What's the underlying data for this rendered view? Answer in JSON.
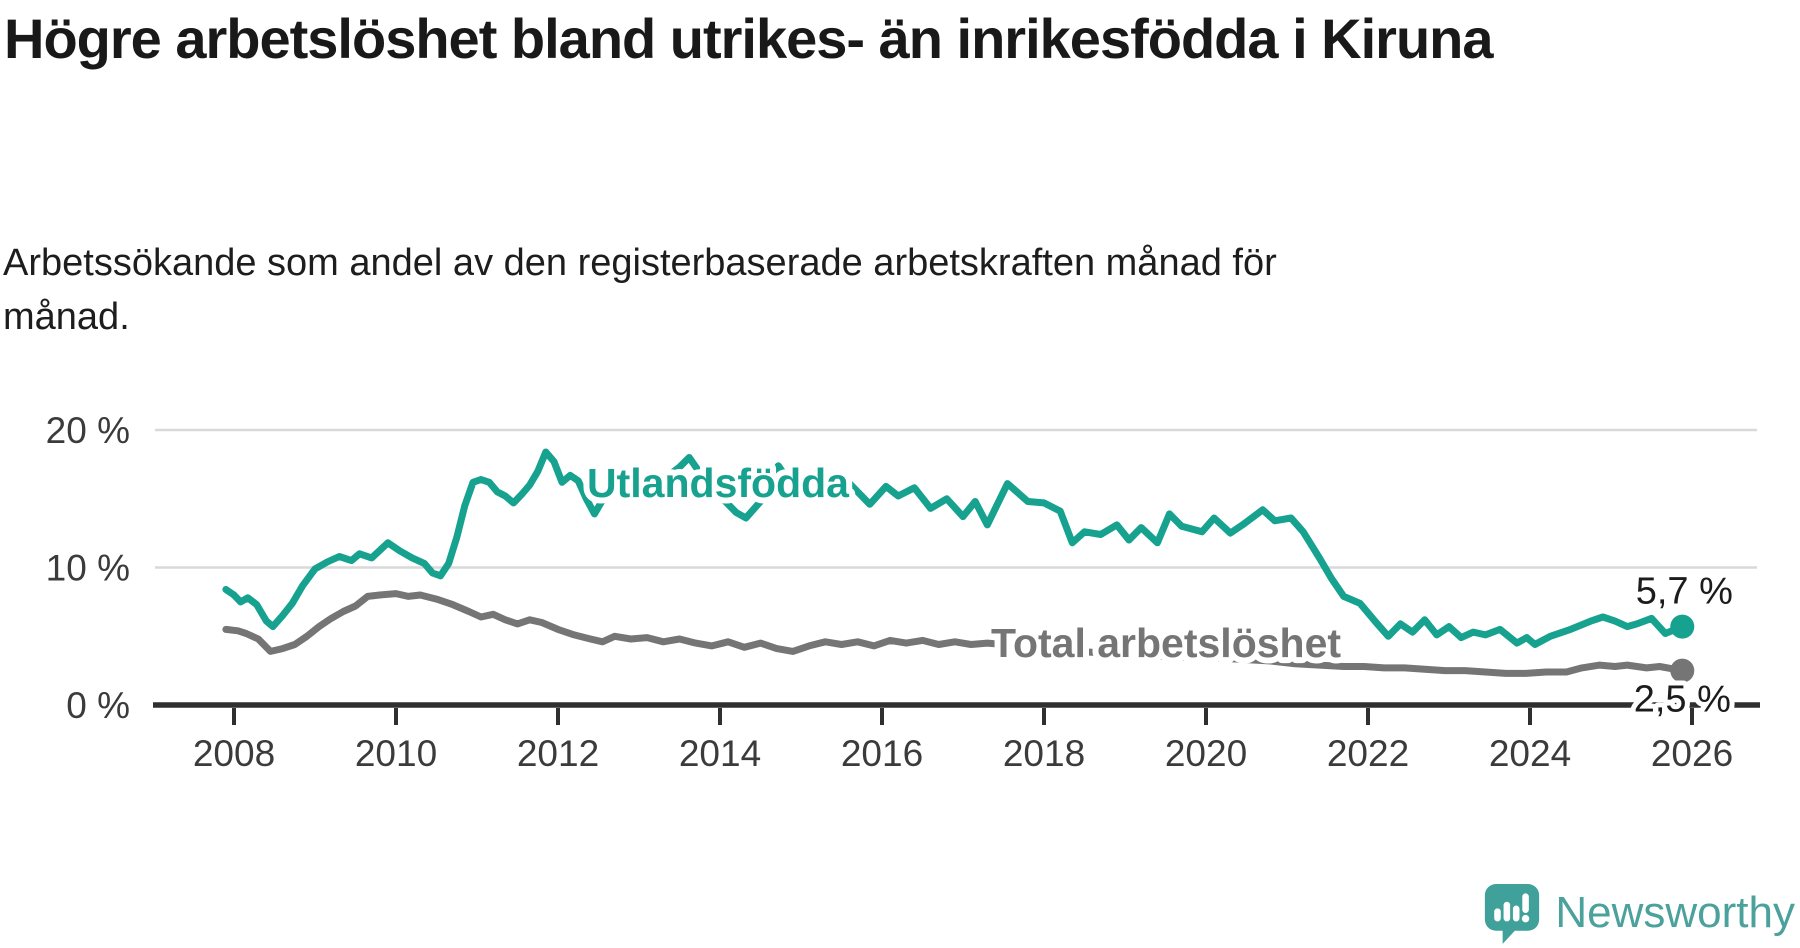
{
  "title": "Högre arbetslöshet bland utrikes- än inrikesfödda i Kiruna",
  "subtitle": "Arbetssökande som andel av den registerbaserade arbetskraften månad för månad.",
  "branding": {
    "logo_text": "Newsworthy",
    "logo_icon": "speech-bubble-bar-chart",
    "brand_color": "#4ba19b"
  },
  "colors": {
    "foreign_born_line": "#16a28f",
    "total_line": "#757575",
    "gridline": "#d9d9d9",
    "axis": "#2f2f2f",
    "tick_text": "#3b3b3b",
    "value_label_text": "#1c1c1c"
  },
  "chart_data": {
    "type": "line",
    "title": "Högre arbetslöshet bland utrikes- än inrikesfödda i Kiruna",
    "subtitle": "Arbetssökande som andel av den registerbaserade arbetskraften månad för månad.",
    "unit": "%",
    "grid": true,
    "legend_position": "inline-labels-on-lines",
    "x_axis": {
      "label": "",
      "range": [
        2007.6,
        2026.9
      ],
      "ticks": [
        2008,
        2010,
        2012,
        2014,
        2016,
        2018,
        2020,
        2022,
        2024,
        2026
      ]
    },
    "y_axis": {
      "label": "",
      "range": [
        0,
        21.8
      ],
      "ticks": [
        {
          "value": 0,
          "label": "0 %"
        },
        {
          "value": 10,
          "label": "10 %"
        },
        {
          "value": 20,
          "label": "20 %"
        }
      ]
    },
    "series": [
      {
        "name": "Utlandsfödda",
        "color": "#16a28f",
        "end_label": "5,7 %",
        "end_value": 5.7,
        "points": [
          [
            2007.9,
            8.4
          ],
          [
            2008.0,
            8.0
          ],
          [
            2008.08,
            7.5
          ],
          [
            2008.17,
            7.8
          ],
          [
            2008.28,
            7.3
          ],
          [
            2008.4,
            6.1
          ],
          [
            2008.48,
            5.7
          ],
          [
            2008.6,
            6.5
          ],
          [
            2008.72,
            7.4
          ],
          [
            2008.85,
            8.7
          ],
          [
            2009.0,
            9.9
          ],
          [
            2009.15,
            10.4
          ],
          [
            2009.3,
            10.8
          ],
          [
            2009.45,
            10.5
          ],
          [
            2009.55,
            11.0
          ],
          [
            2009.7,
            10.7
          ],
          [
            2009.9,
            11.8
          ],
          [
            2010.05,
            11.2
          ],
          [
            2010.2,
            10.7
          ],
          [
            2010.35,
            10.3
          ],
          [
            2010.45,
            9.6
          ],
          [
            2010.55,
            9.4
          ],
          [
            2010.65,
            10.3
          ],
          [
            2010.75,
            12.2
          ],
          [
            2010.85,
            14.5
          ],
          [
            2010.95,
            16.2
          ],
          [
            2011.05,
            16.4
          ],
          [
            2011.15,
            16.2
          ],
          [
            2011.25,
            15.5
          ],
          [
            2011.35,
            15.2
          ],
          [
            2011.45,
            14.7
          ],
          [
            2011.55,
            15.3
          ],
          [
            2011.65,
            16.0
          ],
          [
            2011.75,
            17.0
          ],
          [
            2011.85,
            18.4
          ],
          [
            2011.95,
            17.7
          ],
          [
            2012.05,
            16.2
          ],
          [
            2012.15,
            16.7
          ],
          [
            2012.25,
            16.3
          ],
          [
            2012.35,
            15.0
          ],
          [
            2012.45,
            13.9
          ],
          [
            2012.55,
            14.9
          ],
          [
            2012.65,
            15.7
          ],
          [
            2012.8,
            16.1
          ],
          [
            2012.95,
            15.7
          ],
          [
            2013.1,
            16.0
          ],
          [
            2013.3,
            16.4
          ],
          [
            2013.5,
            17.3
          ],
          [
            2013.62,
            18.0
          ],
          [
            2013.75,
            16.9
          ],
          [
            2013.9,
            15.7
          ],
          [
            2014.05,
            14.9
          ],
          [
            2014.2,
            14.0
          ],
          [
            2014.32,
            13.6
          ],
          [
            2014.5,
            14.8
          ],
          [
            2014.65,
            16.9
          ],
          [
            2014.72,
            17.4
          ],
          [
            2014.85,
            16.3
          ],
          [
            2015.0,
            15.9
          ],
          [
            2015.15,
            16.2
          ],
          [
            2015.3,
            15.4
          ],
          [
            2015.45,
            16.1
          ],
          [
            2015.6,
            16.1
          ],
          [
            2015.85,
            14.6
          ],
          [
            2016.05,
            15.9
          ],
          [
            2016.2,
            15.2
          ],
          [
            2016.4,
            15.8
          ],
          [
            2016.6,
            14.3
          ],
          [
            2016.8,
            15.0
          ],
          [
            2017.0,
            13.7
          ],
          [
            2017.15,
            14.8
          ],
          [
            2017.3,
            13.1
          ],
          [
            2017.55,
            16.1
          ],
          [
            2017.8,
            14.8
          ],
          [
            2018.0,
            14.7
          ],
          [
            2018.2,
            14.1
          ],
          [
            2018.35,
            11.8
          ],
          [
            2018.5,
            12.6
          ],
          [
            2018.7,
            12.4
          ],
          [
            2018.9,
            13.1
          ],
          [
            2019.05,
            12.0
          ],
          [
            2019.2,
            12.9
          ],
          [
            2019.4,
            11.8
          ],
          [
            2019.55,
            13.9
          ],
          [
            2019.7,
            13.0
          ],
          [
            2019.95,
            12.6
          ],
          [
            2020.1,
            13.6
          ],
          [
            2020.3,
            12.5
          ],
          [
            2020.45,
            13.1
          ],
          [
            2020.7,
            14.2
          ],
          [
            2020.85,
            13.4
          ],
          [
            2021.05,
            13.6
          ],
          [
            2021.2,
            12.6
          ],
          [
            2021.4,
            10.7
          ],
          [
            2021.55,
            9.2
          ],
          [
            2021.7,
            7.9
          ],
          [
            2021.9,
            7.4
          ],
          [
            2022.1,
            6.0
          ],
          [
            2022.25,
            5.0
          ],
          [
            2022.4,
            5.9
          ],
          [
            2022.55,
            5.3
          ],
          [
            2022.7,
            6.2
          ],
          [
            2022.85,
            5.1
          ],
          [
            2023.0,
            5.7
          ],
          [
            2023.15,
            4.9
          ],
          [
            2023.3,
            5.3
          ],
          [
            2023.45,
            5.1
          ],
          [
            2023.63,
            5.5
          ],
          [
            2023.84,
            4.5
          ],
          [
            2023.96,
            4.9
          ],
          [
            2024.06,
            4.4
          ],
          [
            2024.25,
            5.0
          ],
          [
            2024.5,
            5.5
          ],
          [
            2024.75,
            6.1
          ],
          [
            2024.9,
            6.4
          ],
          [
            2025.05,
            6.1
          ],
          [
            2025.2,
            5.7
          ],
          [
            2025.32,
            5.9
          ],
          [
            2025.5,
            6.3
          ],
          [
            2025.67,
            5.2
          ],
          [
            2025.88,
            5.7
          ]
        ]
      },
      {
        "name": "Total arbetslöshet",
        "color": "#757575",
        "end_label": "2,5 %",
        "end_value": 2.5,
        "points": [
          [
            2007.9,
            5.5
          ],
          [
            2008.05,
            5.4
          ],
          [
            2008.15,
            5.2
          ],
          [
            2008.3,
            4.8
          ],
          [
            2008.45,
            3.9
          ],
          [
            2008.6,
            4.1
          ],
          [
            2008.75,
            4.4
          ],
          [
            2008.9,
            5.0
          ],
          [
            2009.05,
            5.7
          ],
          [
            2009.2,
            6.3
          ],
          [
            2009.35,
            6.8
          ],
          [
            2009.5,
            7.2
          ],
          [
            2009.65,
            7.9
          ],
          [
            2009.8,
            8.0
          ],
          [
            2010.0,
            8.1
          ],
          [
            2010.15,
            7.9
          ],
          [
            2010.3,
            8.0
          ],
          [
            2010.5,
            7.7
          ],
          [
            2010.7,
            7.3
          ],
          [
            2010.9,
            6.8
          ],
          [
            2011.05,
            6.4
          ],
          [
            2011.2,
            6.6
          ],
          [
            2011.35,
            6.2
          ],
          [
            2011.5,
            5.9
          ],
          [
            2011.65,
            6.2
          ],
          [
            2011.8,
            6.0
          ],
          [
            2012.0,
            5.5
          ],
          [
            2012.2,
            5.1
          ],
          [
            2012.4,
            4.8
          ],
          [
            2012.55,
            4.6
          ],
          [
            2012.7,
            5.0
          ],
          [
            2012.9,
            4.8
          ],
          [
            2013.1,
            4.9
          ],
          [
            2013.3,
            4.6
          ],
          [
            2013.5,
            4.8
          ],
          [
            2013.7,
            4.5
          ],
          [
            2013.9,
            4.3
          ],
          [
            2014.1,
            4.6
          ],
          [
            2014.3,
            4.2
          ],
          [
            2014.5,
            4.5
          ],
          [
            2014.7,
            4.1
          ],
          [
            2014.9,
            3.9
          ],
          [
            2015.1,
            4.3
          ],
          [
            2015.3,
            4.6
          ],
          [
            2015.5,
            4.4
          ],
          [
            2015.7,
            4.6
          ],
          [
            2015.9,
            4.3
          ],
          [
            2016.1,
            4.7
          ],
          [
            2016.3,
            4.5
          ],
          [
            2016.5,
            4.7
          ],
          [
            2016.7,
            4.4
          ],
          [
            2016.9,
            4.6
          ],
          [
            2017.1,
            4.4
          ],
          [
            2017.3,
            4.5
          ],
          [
            2017.5,
            4.4
          ],
          [
            2017.8,
            4.2
          ],
          [
            2018.1,
            4.0
          ],
          [
            2018.4,
            3.9
          ],
          [
            2018.7,
            3.8
          ],
          [
            2019.0,
            3.7
          ],
          [
            2019.3,
            3.6
          ],
          [
            2019.6,
            3.5
          ],
          [
            2019.9,
            3.5
          ],
          [
            2020.2,
            3.4
          ],
          [
            2020.5,
            3.3
          ],
          [
            2020.8,
            3.2
          ],
          [
            2021.1,
            3.0
          ],
          [
            2021.4,
            2.9
          ],
          [
            2021.7,
            2.8
          ],
          [
            2021.95,
            2.8
          ],
          [
            2022.2,
            2.7
          ],
          [
            2022.45,
            2.7
          ],
          [
            2022.7,
            2.6
          ],
          [
            2022.95,
            2.5
          ],
          [
            2023.2,
            2.5
          ],
          [
            2023.45,
            2.4
          ],
          [
            2023.7,
            2.3
          ],
          [
            2023.95,
            2.3
          ],
          [
            2024.2,
            2.4
          ],
          [
            2024.45,
            2.4
          ],
          [
            2024.64,
            2.7
          ],
          [
            2024.86,
            2.9
          ],
          [
            2025.05,
            2.8
          ],
          [
            2025.2,
            2.9
          ],
          [
            2025.44,
            2.7
          ],
          [
            2025.6,
            2.8
          ],
          [
            2025.88,
            2.5
          ]
        ]
      }
    ]
  }
}
